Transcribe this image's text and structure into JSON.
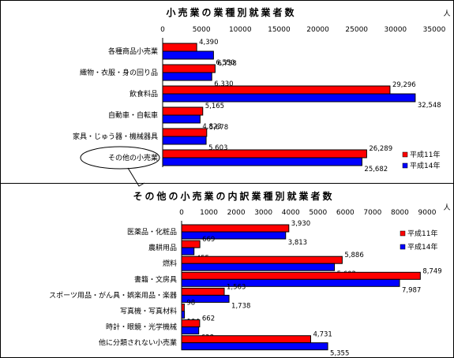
{
  "colors": {
    "h11": "#ff0000",
    "h14": "#0000ff",
    "outline": "#000000"
  },
  "chart_data": [
    {
      "type": "bar",
      "orientation": "horizontal",
      "title": "小売業の業種別就業者数",
      "unit": "人",
      "xlim": [
        0,
        35000
      ],
      "ticks": [
        "0",
        "5000",
        "10000",
        "15000",
        "20000",
        "25000",
        "30000",
        "35000"
      ],
      "categories": [
        "各種商品小売業",
        "織物・衣服・身の回り品",
        "飲食料品",
        "自動車・自転車",
        "家具・じゅう器・機械器具",
        "その他の小売業"
      ],
      "series": [
        {
          "name": "平成11年",
          "values": [
            4390,
            6758,
            29296,
            5165,
            5678,
            26289
          ],
          "labels": [
            "4,390",
            "6,758",
            "29,296",
            "5,165",
            "5,678",
            "26,289"
          ]
        },
        {
          "name": "平成14年",
          "values": [
            6550,
            6330,
            32548,
            4823,
            5603,
            25682
          ],
          "labels": [
            "6,550",
            "6,330",
            "32,548",
            "4,823",
            "5,603",
            "25,682"
          ]
        }
      ],
      "grid": false,
      "legend": "bottom-right"
    },
    {
      "type": "bar",
      "orientation": "horizontal",
      "title": "その他の小売業の内訳業種別就業者数",
      "unit": "人",
      "xlim": [
        0,
        9000
      ],
      "ticks": [
        "0",
        "1000",
        "2000",
        "3000",
        "4000",
        "5000",
        "6000",
        "7000",
        "8000",
        "9000"
      ],
      "categories": [
        "医薬品・化粧品",
        "農耕用品",
        "燃料",
        "書籍・文房具",
        "スポーツ用品・がん具・娯楽用品・楽器",
        "写真機・写真材料",
        "時計・眼鏡・光学機械",
        "他に分類されない小売業"
      ],
      "series": [
        {
          "name": "平成11年",
          "values": [
            3930,
            669,
            5886,
            8749,
            1563,
            98,
            662,
            4731
          ],
          "labels": [
            "3,930",
            "669",
            "5,886",
            "8,749",
            "1,563",
            "98",
            "662",
            "4,731"
          ]
        },
        {
          "name": "平成14年",
          "values": [
            3813,
            455,
            5602,
            7987,
            1738,
            104,
            628,
            5355
          ],
          "labels": [
            "3,813",
            "455",
            "5,602",
            "7,987",
            "1,738",
            "104",
            "628",
            "5,355"
          ]
        }
      ],
      "grid": false,
      "legend": "top-right"
    }
  ]
}
